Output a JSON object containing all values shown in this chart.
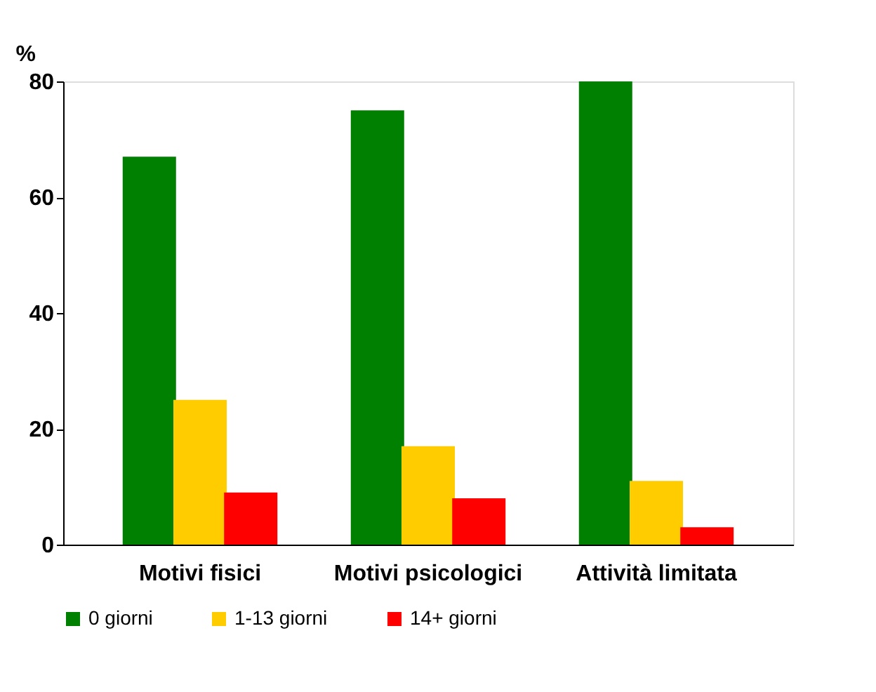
{
  "chart_data": {
    "type": "bar",
    "ylabel": "%",
    "categories": [
      "Motivi fisici",
      "Motivi psicologici",
      "Attività limitata"
    ],
    "series": [
      {
        "name": "0 giorni",
        "color": "#008000",
        "values": [
          67,
          75,
          80
        ]
      },
      {
        "name": "1-13 giorni",
        "color": "#ffcc00",
        "values": [
          25,
          17,
          11
        ]
      },
      {
        "name": "14+ giorni",
        "color": "#ff0000",
        "values": [
          9,
          8,
          3
        ]
      }
    ],
    "ylim": [
      0,
      80
    ],
    "yticks": [
      0,
      20,
      40,
      60,
      80
    ],
    "grid": false,
    "legend": "bottom"
  }
}
